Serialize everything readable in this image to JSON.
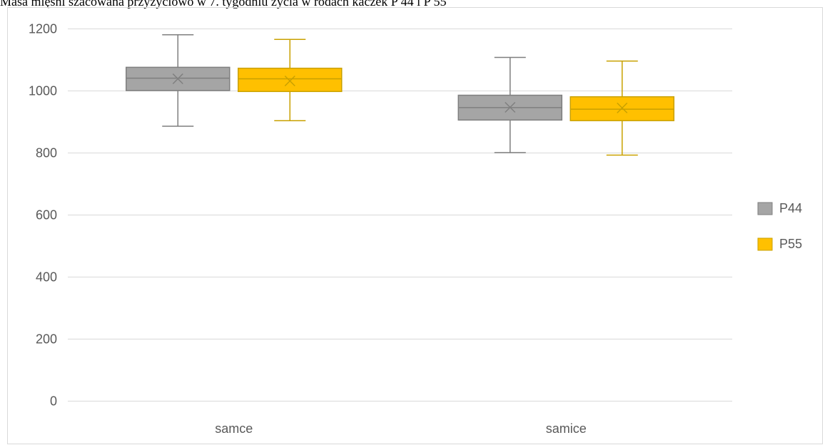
{
  "chart_data": {
    "type": "box",
    "title": "Masa mięśni szacowana przyżyciowo w 7. tygodniu życia w rodach kaczek P 44 i P 55",
    "xlabel": "",
    "ylabel": "",
    "ylim": [
      0,
      1200
    ],
    "yticks": [
      0,
      200,
      400,
      600,
      800,
      1000,
      1200
    ],
    "categories": [
      "samce",
      "samice"
    ],
    "grid": true,
    "legend_position": "right",
    "series": [
      {
        "name": "P44",
        "color": "#A5A5A5",
        "stroke": "#7F7F7F",
        "boxes": [
          {
            "min": 885,
            "q1": 1000,
            "median": 1040,
            "mean": 1038,
            "q3": 1075,
            "max": 1180
          },
          {
            "min": 800,
            "q1": 905,
            "median": 945,
            "mean": 946,
            "q3": 985,
            "max": 1107
          }
        ]
      },
      {
        "name": "P55",
        "color": "#FFC000",
        "stroke": "#C9A100",
        "boxes": [
          {
            "min": 903,
            "q1": 997,
            "median": 1038,
            "mean": 1031,
            "q3": 1072,
            "max": 1165
          },
          {
            "min": 792,
            "q1": 903,
            "median": 940,
            "mean": 944,
            "q3": 980,
            "max": 1095
          }
        ]
      }
    ]
  }
}
